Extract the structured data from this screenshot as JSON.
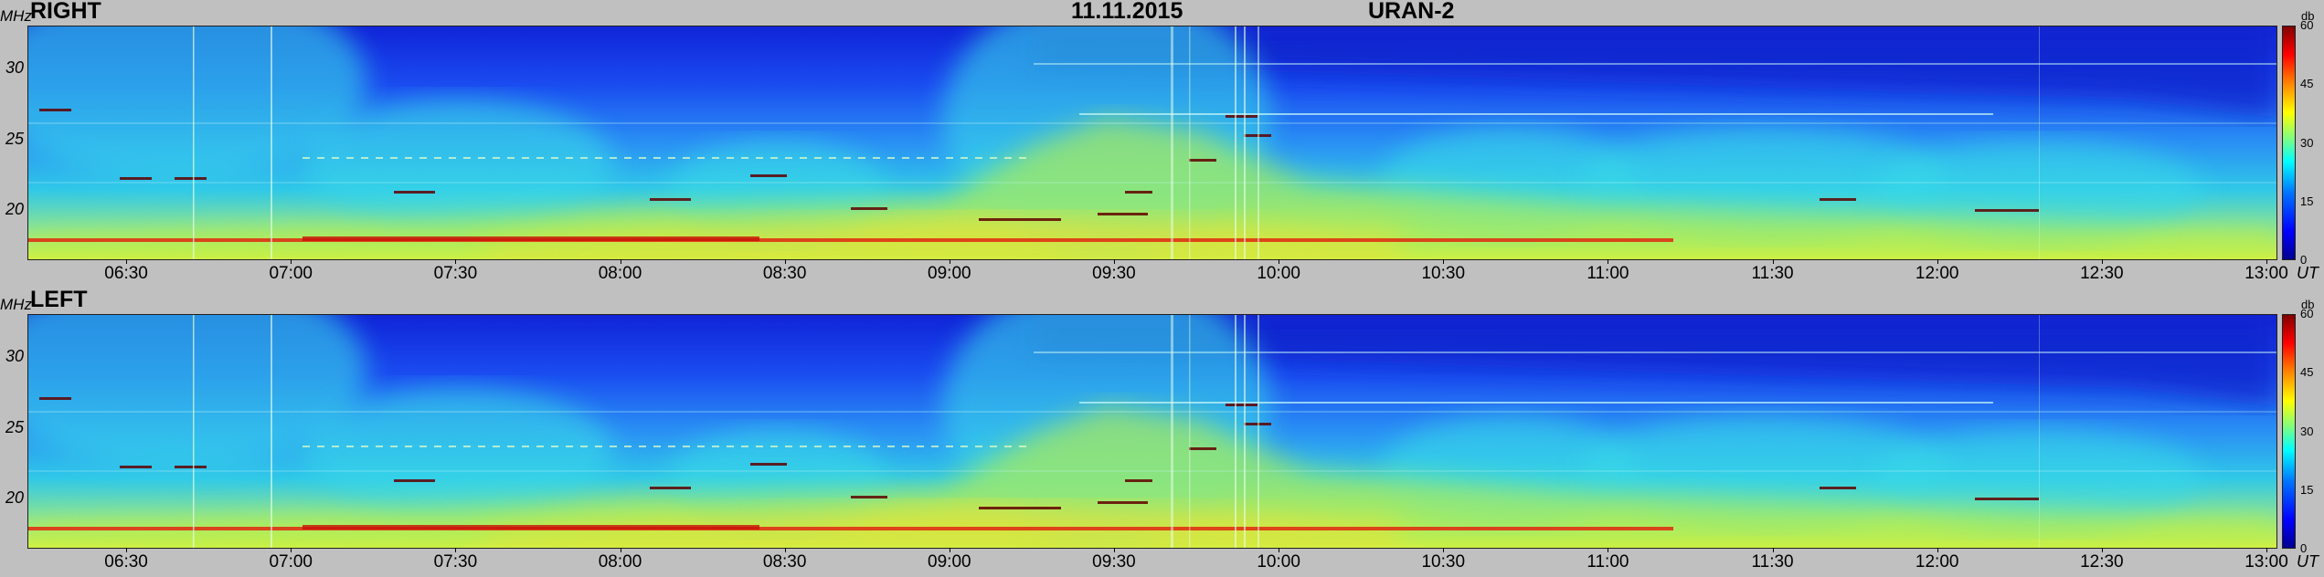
{
  "header": {
    "date": "11.11.2015",
    "instrument": "URAN-2"
  },
  "chart_data": [
    {
      "type": "heatmap",
      "title": "RIGHT",
      "ylabel": "MHz",
      "xlabel": "UT",
      "y_ticks": [
        20,
        25,
        30
      ],
      "ylim": [
        16.5,
        33
      ],
      "x_ticks": [
        "06:30",
        "07:00",
        "07:30",
        "08:00",
        "08:30",
        "09:00",
        "09:30",
        "10:00",
        "10:30",
        "11:00",
        "11:30",
        "12:00",
        "12:30",
        "13:00"
      ],
      "xlim": [
        "06:12",
        "13:02"
      ],
      "colorbar": {
        "unit": "db",
        "ticks": [
          0,
          15,
          30,
          45,
          60
        ],
        "range": [
          0,
          60
        ]
      }
    },
    {
      "type": "heatmap",
      "title": "LEFT",
      "ylabel": "MHz",
      "xlabel": "UT",
      "y_ticks": [
        20,
        25,
        30
      ],
      "ylim": [
        16.5,
        33
      ],
      "x_ticks": [
        "06:30",
        "07:00",
        "07:30",
        "08:00",
        "08:30",
        "09:00",
        "09:30",
        "10:00",
        "10:30",
        "11:00",
        "11:30",
        "12:00",
        "12:30",
        "13:00"
      ],
      "xlim": [
        "06:12",
        "13:02"
      ],
      "colorbar": {
        "unit": "db",
        "ticks": [
          0,
          15,
          30,
          45,
          60
        ],
        "range": [
          0,
          60
        ]
      }
    }
  ]
}
